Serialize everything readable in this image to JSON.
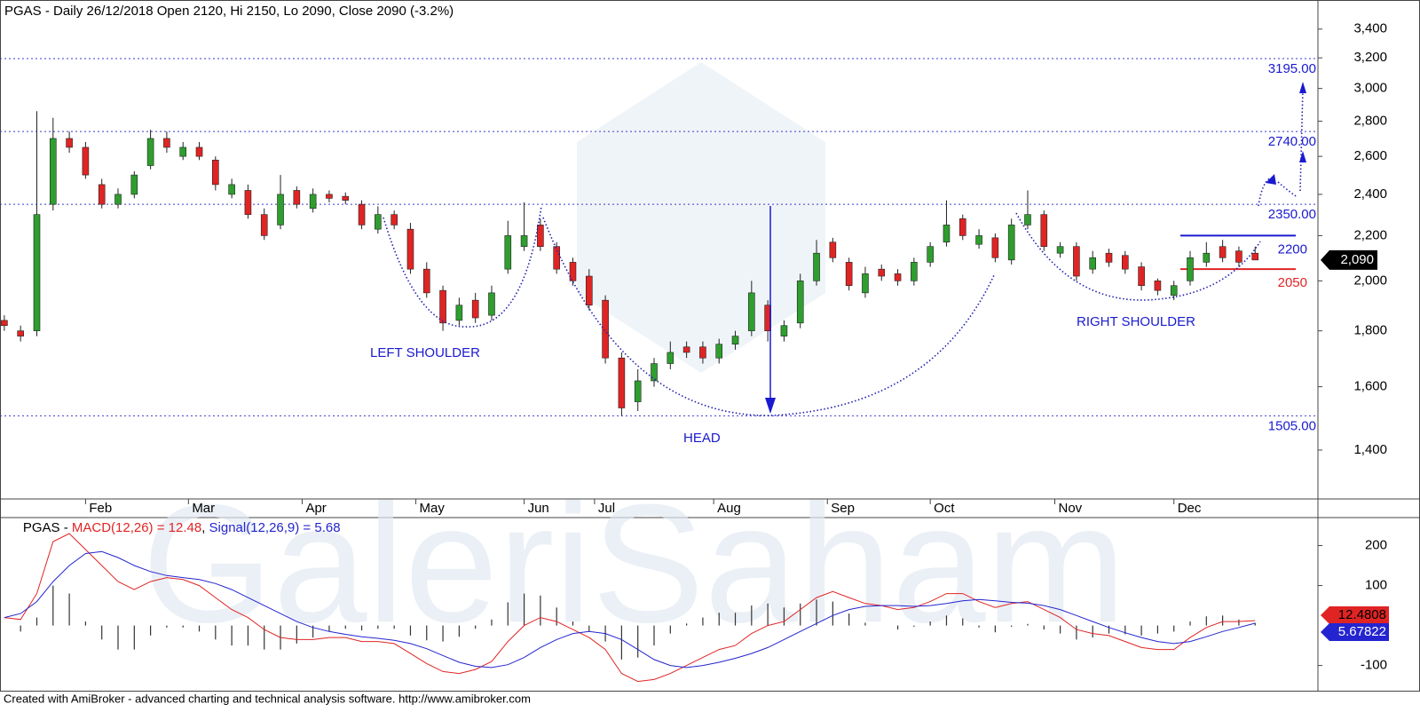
{
  "chart_data": [
    {
      "type": "candlestick",
      "title": "PGAS - Daily 26/12/2018 Open 2120, Hi 2150, Lo 2090, Close 2090 (-3.2%)",
      "watermark": "GaleriSaham",
      "log_scale": true,
      "up_color": "#2e9e2e",
      "down_color": "#e02424",
      "xlim": [
        -0.8,
        242.6
      ],
      "ylim": [
        1263,
        3615
      ],
      "yticks": [
        {
          "value": 3400,
          "label": "3,400"
        },
        {
          "value": 3200,
          "label": "3,200"
        },
        {
          "value": 3000,
          "label": "3,000"
        },
        {
          "value": 2800,
          "label": "2,800"
        },
        {
          "value": 2600,
          "label": "2,600"
        },
        {
          "value": 2400,
          "label": "2,400"
        },
        {
          "value": 2200,
          "label": "2,200"
        },
        {
          "value": 2000,
          "label": "2,000"
        },
        {
          "value": 1800,
          "label": "1,800"
        },
        {
          "value": 1600,
          "label": "1,600"
        },
        {
          "value": 1400,
          "label": "1,400"
        }
      ],
      "xticks": [
        {
          "value": 15,
          "label": "Feb"
        },
        {
          "value": 34,
          "label": "Mar"
        },
        {
          "value": 55,
          "label": "Apr"
        },
        {
          "value": 76,
          "label": "May"
        },
        {
          "value": 96,
          "label": "Jun"
        },
        {
          "value": 109,
          "label": "Jul"
        },
        {
          "value": 131,
          "label": "Aug"
        },
        {
          "value": 152,
          "label": "Sep"
        },
        {
          "value": 171,
          "label": "Oct"
        },
        {
          "value": 194,
          "label": "Nov"
        },
        {
          "value": 216,
          "label": "Dec"
        }
      ],
      "x": [
        0,
        3,
        6,
        9,
        12,
        15,
        18,
        21,
        24,
        27,
        30,
        33,
        36,
        39,
        42,
        45,
        48,
        51,
        54,
        57,
        60,
        63,
        66,
        69,
        72,
        75,
        78,
        81,
        84,
        87,
        90,
        93,
        96,
        99,
        102,
        105,
        108,
        111,
        114,
        117,
        120,
        123,
        126,
        129,
        132,
        135,
        138,
        141,
        144,
        147,
        150,
        153,
        156,
        159,
        162,
        165,
        168,
        171,
        174,
        177,
        180,
        183,
        186,
        189,
        192,
        195,
        198,
        201,
        204,
        207,
        210,
        213,
        216,
        219,
        222,
        225,
        228,
        231
      ],
      "open": [
        1840,
        1800,
        1800,
        2350,
        2700,
        2650,
        2450,
        2350,
        2400,
        2550,
        2700,
        2600,
        2650,
        2580,
        2400,
        2420,
        2300,
        2250,
        2420,
        2330,
        2400,
        2390,
        2350,
        2230,
        2300,
        2230,
        2050,
        1960,
        1840,
        1920,
        1860,
        2050,
        2150,
        2250,
        2150,
        2080,
        2020,
        1920,
        1700,
        1550,
        1620,
        1680,
        1740,
        1740,
        1700,
        1750,
        1800,
        1900,
        1780,
        1830,
        2000,
        2170,
        2080,
        1950,
        2050,
        2030,
        2000,
        2080,
        2170,
        2280,
        2160,
        2190,
        2090,
        2250,
        2300,
        2120,
        2150,
        2050,
        2120,
        2110,
        2060,
        2000,
        1940,
        2000,
        2080,
        2150,
        2130,
        2120
      ],
      "high": [
        1860,
        1820,
        2860,
        2820,
        2740,
        2680,
        2480,
        2430,
        2520,
        2750,
        2740,
        2680,
        2680,
        2600,
        2480,
        2450,
        2330,
        2500,
        2440,
        2430,
        2420,
        2410,
        2370,
        2340,
        2320,
        2260,
        2080,
        1980,
        1930,
        1950,
        1980,
        2270,
        2360,
        2280,
        2170,
        2100,
        2050,
        1940,
        1720,
        1660,
        1700,
        1760,
        1760,
        1760,
        1770,
        1800,
        2000,
        1920,
        1840,
        2030,
        2180,
        2190,
        2100,
        2060,
        2070,
        2050,
        2100,
        2170,
        2370,
        2300,
        2230,
        2210,
        2280,
        2420,
        2320,
        2170,
        2170,
        2130,
        2140,
        2130,
        2080,
        2010,
        2000,
        2130,
        2170,
        2180,
        2150,
        2150
      ],
      "low": [
        1800,
        1760,
        1780,
        2320,
        2620,
        2480,
        2330,
        2330,
        2380,
        2530,
        2620,
        2580,
        2580,
        2420,
        2380,
        2280,
        2180,
        2230,
        2330,
        2310,
        2360,
        2350,
        2230,
        2210,
        2230,
        2030,
        1930,
        1800,
        1820,
        1830,
        1840,
        2030,
        2130,
        2130,
        2030,
        1980,
        1880,
        1680,
        1505,
        1520,
        1600,
        1660,
        1700,
        1680,
        1680,
        1730,
        1780,
        1760,
        1760,
        1810,
        1980,
        2080,
        1960,
        1930,
        2000,
        1980,
        1980,
        2060,
        2150,
        2180,
        2140,
        2080,
        2070,
        2230,
        2130,
        2100,
        2000,
        2030,
        2060,
        2030,
        1960,
        1940,
        1920,
        1980,
        2060,
        2080,
        2060,
        2090
      ],
      "close": [
        1820,
        1780,
        2300,
        2700,
        2650,
        2500,
        2350,
        2400,
        2500,
        2700,
        2650,
        2650,
        2600,
        2450,
        2450,
        2300,
        2200,
        2400,
        2350,
        2400,
        2380,
        2370,
        2250,
        2300,
        2250,
        2050,
        1950,
        1830,
        1900,
        1850,
        1950,
        2200,
        2200,
        2150,
        2050,
        2000,
        1900,
        1700,
        1530,
        1620,
        1680,
        1720,
        1720,
        1700,
        1750,
        1780,
        1950,
        1800,
        1820,
        2000,
        2120,
        2100,
        1980,
        2030,
        2020,
        2000,
        2080,
        2150,
        2250,
        2200,
        2200,
        2100,
        2250,
        2300,
        2150,
        2150,
        2020,
        2100,
        2080,
        2050,
        1980,
        1960,
        1980,
        2100,
        2120,
        2100,
        2080,
        2090
      ],
      "levels": [
        {
          "value": 3195,
          "label": "3195.00"
        },
        {
          "value": 2740,
          "label": "2740.00"
        },
        {
          "value": 2350,
          "label": "2350.00"
        },
        {
          "value": 1505,
          "label": "1505.00"
        }
      ],
      "box_lines": [
        {
          "value": 2200,
          "label": "2200",
          "color": "#1a1ad0"
        },
        {
          "value": 2050,
          "label": "2050",
          "color": "#e02424"
        }
      ],
      "last_price": {
        "value": 2090,
        "label": "2,090"
      },
      "annotations": [
        "LEFT SHOULDER",
        "HEAD",
        "RIGHT SHOULDER"
      ]
    },
    {
      "type": "macd",
      "title_parts": [
        "PGAS - ",
        "MACD(12,26) = 12.48",
        ", ",
        "Signal(12,26,9) = 5.68"
      ],
      "ylim": [
        -163,
        270
      ],
      "yticks": [
        200,
        100,
        -100
      ],
      "x": [
        0,
        3,
        6,
        9,
        12,
        15,
        18,
        21,
        24,
        27,
        30,
        33,
        36,
        39,
        42,
        45,
        48,
        51,
        54,
        57,
        60,
        63,
        66,
        69,
        72,
        75,
        78,
        81,
        84,
        87,
        90,
        93,
        96,
        99,
        102,
        105,
        108,
        111,
        114,
        117,
        120,
        123,
        126,
        129,
        132,
        135,
        138,
        141,
        144,
        147,
        150,
        153,
        156,
        159,
        162,
        165,
        168,
        171,
        174,
        177,
        180,
        183,
        186,
        189,
        192,
        195,
        198,
        201,
        204,
        207,
        210,
        213,
        216,
        219,
        222,
        225,
        228,
        231
      ],
      "series": [
        {
          "name": "MACD(12,26)",
          "color": "#e02424",
          "values": [
            20,
            15,
            80,
            210,
            230,
            190,
            150,
            110,
            90,
            110,
            120,
            115,
            100,
            70,
            40,
            20,
            -10,
            -30,
            -35,
            -35,
            -30,
            -30,
            -40,
            -40,
            -45,
            -70,
            -95,
            -115,
            -120,
            -110,
            -90,
            -40,
            0,
            20,
            10,
            -10,
            -30,
            -60,
            -120,
            -140,
            -135,
            -120,
            -100,
            -80,
            -60,
            -50,
            -20,
            0,
            10,
            40,
            70,
            85,
            70,
            55,
            50,
            40,
            45,
            60,
            80,
            80,
            60,
            45,
            55,
            60,
            40,
            20,
            -10,
            -20,
            -25,
            -40,
            -55,
            -60,
            -60,
            -30,
            -5,
            10,
            10,
            12.4808
          ]
        },
        {
          "name": "Signal(12,26,9)",
          "color": "#2424d0",
          "values": [
            20,
            30,
            60,
            110,
            150,
            180,
            185,
            170,
            150,
            135,
            125,
            120,
            115,
            105,
            90,
            70,
            50,
            30,
            10,
            -5,
            -15,
            -22,
            -28,
            -32,
            -37,
            -45,
            -58,
            -75,
            -92,
            -102,
            -105,
            -98,
            -80,
            -55,
            -35,
            -20,
            -15,
            -20,
            -35,
            -60,
            -85,
            -100,
            -105,
            -100,
            -92,
            -82,
            -70,
            -55,
            -35,
            -15,
            5,
            25,
            40,
            48,
            50,
            50,
            48,
            50,
            55,
            62,
            65,
            62,
            58,
            56,
            50,
            40,
            25,
            10,
            -5,
            -18,
            -30,
            -40,
            -45,
            -40,
            -28,
            -15,
            -5,
            5.67822
          ]
        }
      ],
      "histogram": {
        "color": "#333333",
        "values": [
          0,
          -15,
          20,
          100,
          80,
          10,
          -35,
          -60,
          -60,
          -25,
          -5,
          -5,
          -15,
          -35,
          -50,
          -50,
          -60,
          -60,
          -45,
          -30,
          -15,
          -8,
          -12,
          -8,
          -8,
          -25,
          -37,
          -40,
          -28,
          -8,
          15,
          58,
          80,
          75,
          45,
          10,
          -15,
          -40,
          -85,
          -80,
          -50,
          -20,
          5,
          20,
          32,
          32,
          50,
          55,
          45,
          55,
          65,
          60,
          30,
          7,
          0,
          -10,
          -3,
          10,
          25,
          18,
          -5,
          -17,
          -3,
          4,
          -10,
          -20,
          -35,
          -30,
          -20,
          -22,
          -25,
          -20,
          -15,
          10,
          23,
          25,
          15,
          6.8
        ]
      }
    },
    {
      "footer": "Created with AmiBroker - advanced charting and technical analysis software. http://www.amibroker.com"
    }
  ]
}
